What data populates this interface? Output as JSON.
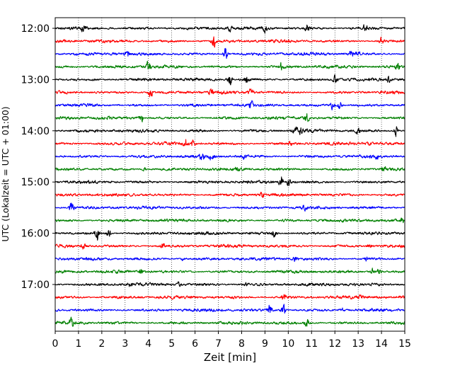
{
  "chart_data": {
    "type": "line",
    "title": "",
    "xlabel": "Zeit  [min]",
    "ylabel": "UTC (Lokalzeit = UTC + 01:00)",
    "xlim": [
      0,
      15
    ],
    "x_ticks": [
      "0",
      "1",
      "2",
      "3",
      "4",
      "5",
      "6",
      "7",
      "8",
      "9",
      "10",
      "11",
      "12",
      "13",
      "14",
      "15"
    ],
    "y_ticks": [
      {
        "label": "12:00",
        "trace": 0
      },
      {
        "label": "13:00",
        "trace": 4
      },
      {
        "label": "14:00",
        "trace": 8
      },
      {
        "label": "15:00",
        "trace": 12
      },
      {
        "label": "16:00",
        "trace": 16
      },
      {
        "label": "17:00",
        "trace": 20
      }
    ],
    "grid": "vertical dotted",
    "series": [
      {
        "start": "12:00",
        "color": "#000000",
        "events": [
          [
            1.2,
            0.5
          ],
          [
            7.5,
            0.45
          ],
          [
            9.0,
            0.45
          ],
          [
            10.8,
            0.7
          ],
          [
            13.3,
            0.5
          ]
        ]
      },
      {
        "start": "12:15",
        "color": "#ff0000",
        "events": [
          [
            6.8,
            1.0
          ],
          [
            14.0,
            0.5
          ]
        ]
      },
      {
        "start": "12:30",
        "color": "#0000ff",
        "events": [
          [
            3.1,
            0.45
          ],
          [
            7.3,
            1.0
          ],
          [
            12.7,
            0.5
          ],
          [
            13.0,
            0.4
          ]
        ]
      },
      {
        "start": "12:45",
        "color": "#008000",
        "events": [
          [
            4.0,
            0.9
          ],
          [
            9.7,
            0.5
          ],
          [
            14.7,
            0.6
          ]
        ]
      },
      {
        "start": "13:00",
        "color": "#000000",
        "events": [
          [
            7.5,
            1.0
          ],
          [
            8.2,
            0.7
          ],
          [
            12.0,
            0.6
          ],
          [
            14.3,
            0.5
          ]
        ]
      },
      {
        "start": "13:15",
        "color": "#ff0000",
        "events": [
          [
            4.1,
            0.9
          ],
          [
            6.7,
            0.6
          ],
          [
            8.4,
            0.7
          ]
        ]
      },
      {
        "start": "13:30",
        "color": "#0000ff",
        "events": [
          [
            8.4,
            0.55
          ],
          [
            11.9,
            0.7
          ],
          [
            12.2,
            0.6
          ]
        ]
      },
      {
        "start": "13:45",
        "color": "#008000",
        "events": [
          [
            3.7,
            0.8
          ],
          [
            10.8,
            0.7
          ]
        ]
      },
      {
        "start": "14:00",
        "color": "#000000",
        "events": [
          [
            10.3,
            0.7
          ],
          [
            10.5,
            0.5
          ],
          [
            13.0,
            0.5
          ],
          [
            14.6,
            0.9
          ]
        ]
      },
      {
        "start": "14:15",
        "color": "#ff0000",
        "events": [
          [
            5.6,
            0.7
          ],
          [
            5.9,
            0.5
          ],
          [
            10.1,
            0.35
          ],
          [
            13.5,
            0.3
          ]
        ]
      },
      {
        "start": "14:30",
        "color": "#0000ff",
        "events": [
          [
            6.3,
            0.7
          ],
          [
            6.7,
            0.5
          ],
          [
            8.1,
            0.4
          ],
          [
            13.8,
            0.35
          ]
        ]
      },
      {
        "start": "14:45",
        "color": "#008000",
        "events": [
          [
            3.8,
            0.35
          ],
          [
            7.8,
            0.3
          ],
          [
            14.1,
            0.45
          ]
        ]
      },
      {
        "start": "15:00",
        "color": "#000000",
        "events": [
          [
            9.7,
            0.9
          ],
          [
            10.0,
            0.55
          ]
        ]
      },
      {
        "start": "15:15",
        "color": "#ff0000",
        "events": [
          [
            8.9,
            0.6
          ]
        ]
      },
      {
        "start": "15:30",
        "color": "#0000ff",
        "events": [
          [
            0.7,
            0.8
          ],
          [
            10.7,
            0.4
          ]
        ]
      },
      {
        "start": "15:45",
        "color": "#008000",
        "events": [
          [
            14.9,
            0.3
          ]
        ]
      },
      {
        "start": "16:00",
        "color": "#000000",
        "events": [
          [
            1.8,
            1.0
          ],
          [
            2.3,
            0.55
          ],
          [
            9.4,
            0.6
          ]
        ]
      },
      {
        "start": "16:15",
        "color": "#ff0000",
        "events": [
          [
            1.2,
            0.4
          ],
          [
            4.6,
            0.5
          ],
          [
            13.5,
            0.3
          ]
        ]
      },
      {
        "start": "16:30",
        "color": "#0000ff",
        "events": [
          [
            5.5,
            0.25
          ],
          [
            10.3,
            0.3
          ],
          [
            13.3,
            0.35
          ]
        ]
      },
      {
        "start": "16:45",
        "color": "#008000",
        "events": [
          [
            3.7,
            0.6
          ],
          [
            13.6,
            0.6
          ],
          [
            13.9,
            0.4
          ]
        ]
      },
      {
        "start": "17:00",
        "color": "#000000",
        "events": [
          [
            3.2,
            0.4
          ],
          [
            5.3,
            0.3
          ],
          [
            8.2,
            0.2
          ]
        ]
      },
      {
        "start": "17:15",
        "color": "#ff0000",
        "events": [
          [
            9.8,
            0.4
          ],
          [
            13.1,
            0.2
          ]
        ]
      },
      {
        "start": "17:30",
        "color": "#0000ff",
        "events": [
          [
            9.2,
            0.9
          ],
          [
            9.8,
            1.0
          ],
          [
            12.3,
            0.3
          ]
        ]
      },
      {
        "start": "17:45",
        "color": "#008000",
        "events": [
          [
            0.7,
            0.7
          ],
          [
            10.8,
            0.6
          ]
        ]
      }
    ]
  }
}
